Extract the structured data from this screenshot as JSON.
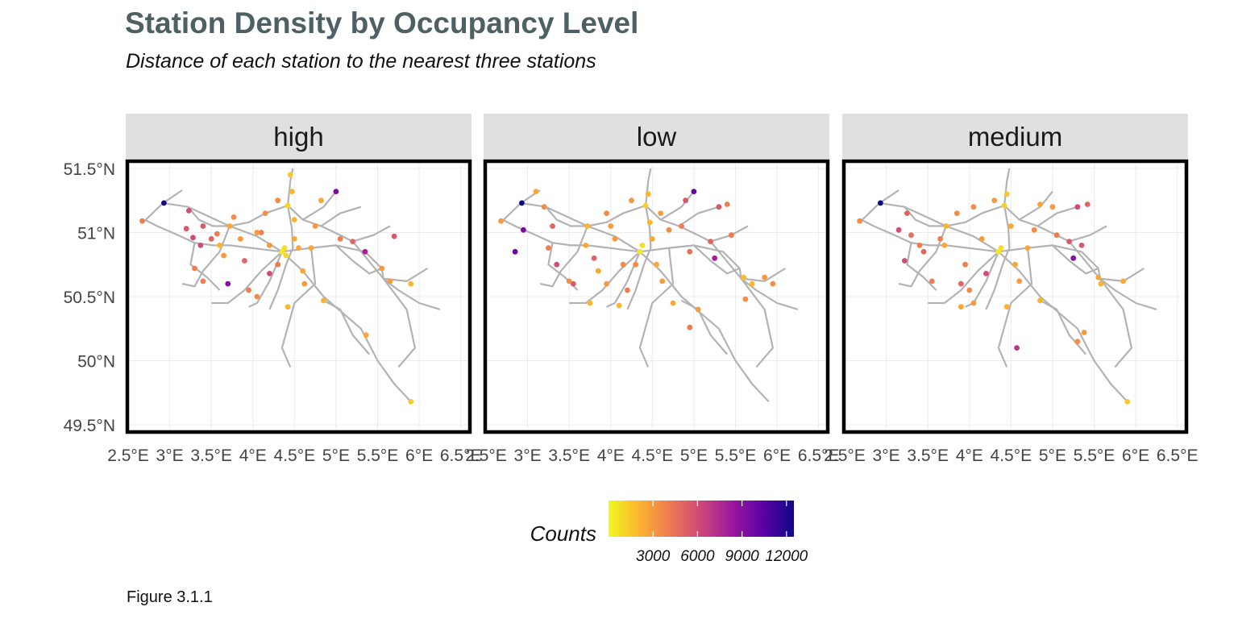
{
  "title": "Station Density by Occupancy Level",
  "subtitle": "Distance of each station to the nearest three stations",
  "caption": "Figure 3.1.1",
  "chart_data": {
    "type": "scatter",
    "geometry": "map of railway lines (grey) with station points",
    "facet_labels": [
      "high",
      "low",
      "medium"
    ],
    "x_ticks": [
      "2.5°E",
      "3°E",
      "3.5°E",
      "4°E",
      "4.5°E",
      "5°E",
      "5.5°E",
      "6°E",
      "6.5°E"
    ],
    "x_tick_values": [
      2.5,
      3,
      3.5,
      4,
      4.5,
      5,
      5.5,
      6,
      6.5
    ],
    "y_ticks": [
      "51.5°N",
      "51°N",
      "50.5°N",
      "50°N",
      "49.5°N"
    ],
    "y_tick_values": [
      51.5,
      51,
      50.5,
      50,
      49.5
    ],
    "xlim": [
      2.5,
      6.6
    ],
    "ylim": [
      49.45,
      51.55
    ],
    "grid": true,
    "legend": {
      "title": "Counts",
      "position": "bottom",
      "ticks": [
        "3000",
        "6000",
        "9000",
        "12000"
      ],
      "tick_values": [
        3000,
        6000,
        9000,
        12000
      ],
      "range": [
        0,
        12500
      ],
      "palette": "plasma (reversed)",
      "colors": [
        "#f0f921",
        "#fdb32f",
        "#ed7953",
        "#cc4778",
        "#9c179e",
        "#5c01a6",
        "#0d0887"
      ]
    },
    "line_color": "#b3b3b3",
    "lines": [
      [
        [
          2.68,
          51.08
        ],
        [
          2.92,
          51.23
        ],
        [
          3.15,
          51.33
        ]
      ],
      [
        [
          2.92,
          51.23
        ],
        [
          3.22,
          51.2
        ],
        [
          3.72,
          51.05
        ],
        [
          4.05,
          50.97
        ],
        [
          4.35,
          50.85
        ]
      ],
      [
        [
          3.22,
          51.2
        ],
        [
          3.35,
          51.1
        ],
        [
          3.52,
          51.05
        ],
        [
          3.72,
          51.05
        ]
      ],
      [
        [
          2.7,
          51.1
        ],
        [
          2.85,
          51.05
        ],
        [
          3.1,
          50.98
        ],
        [
          3.3,
          50.92
        ],
        [
          3.52,
          50.9
        ],
        [
          3.72,
          50.9
        ],
        [
          4.35,
          50.85
        ]
      ],
      [
        [
          3.72,
          51.05
        ],
        [
          3.95,
          51.08
        ],
        [
          4.15,
          51.15
        ],
        [
          4.42,
          51.21
        ]
      ],
      [
        [
          4.42,
          51.21
        ],
        [
          4.45,
          51.4
        ],
        [
          4.48,
          51.5
        ]
      ],
      [
        [
          4.42,
          51.21
        ],
        [
          4.6,
          51.1
        ],
        [
          4.82,
          51.05
        ],
        [
          5.05,
          50.98
        ],
        [
          5.2,
          50.93
        ],
        [
          5.57,
          50.64
        ],
        [
          5.85,
          50.62
        ],
        [
          6.1,
          50.72
        ]
      ],
      [
        [
          4.42,
          51.21
        ],
        [
          4.47,
          51.03
        ],
        [
          4.48,
          50.88
        ],
        [
          4.4,
          50.75
        ],
        [
          4.3,
          50.55
        ],
        [
          4.2,
          50.4
        ]
      ],
      [
        [
          4.35,
          50.85
        ],
        [
          4.7,
          50.88
        ],
        [
          5.0,
          50.9
        ],
        [
          5.35,
          50.85
        ],
        [
          5.55,
          50.72
        ],
        [
          5.57,
          50.64
        ]
      ],
      [
        [
          4.35,
          50.85
        ],
        [
          4.6,
          50.7
        ],
        [
          4.85,
          50.5
        ],
        [
          5.3,
          50.25
        ],
        [
          5.5,
          50.0
        ],
        [
          5.7,
          49.82
        ],
        [
          5.9,
          49.68
        ]
      ],
      [
        [
          4.35,
          50.85
        ],
        [
          4.1,
          50.7
        ],
        [
          3.9,
          50.55
        ],
        [
          3.7,
          50.45
        ],
        [
          3.5,
          50.45
        ]
      ],
      [
        [
          3.72,
          51.05
        ],
        [
          3.6,
          50.85
        ],
        [
          3.4,
          50.7
        ],
        [
          3.3,
          50.58
        ],
        [
          3.15,
          50.6
        ]
      ],
      [
        [
          4.35,
          50.85
        ],
        [
          4.2,
          50.62
        ],
        [
          4.05,
          50.45
        ],
        [
          3.95,
          50.42
        ]
      ],
      [
        [
          4.85,
          50.47
        ],
        [
          5.05,
          50.4
        ],
        [
          5.2,
          50.2
        ],
        [
          5.4,
          50.05
        ]
      ],
      [
        [
          5.57,
          50.64
        ],
        [
          5.75,
          50.55
        ],
        [
          6.0,
          50.45
        ],
        [
          6.25,
          50.4
        ]
      ],
      [
        [
          5.57,
          50.64
        ],
        [
          5.85,
          50.4
        ],
        [
          5.95,
          50.1
        ],
        [
          5.75,
          49.95
        ]
      ],
      [
        [
          4.82,
          51.05
        ],
        [
          5.05,
          51.15
        ],
        [
          5.3,
          51.2
        ]
      ],
      [
        [
          4.6,
          51.1
        ],
        [
          4.85,
          51.2
        ],
        [
          5.0,
          51.32
        ]
      ],
      [
        [
          3.3,
          50.92
        ],
        [
          3.25,
          50.75
        ],
        [
          3.45,
          50.65
        ],
        [
          3.6,
          50.55
        ]
      ],
      [
        [
          4.7,
          50.88
        ],
        [
          4.75,
          50.6
        ],
        [
          4.5,
          50.45
        ],
        [
          4.35,
          50.1
        ],
        [
          4.45,
          49.95
        ]
      ],
      [
        [
          5.2,
          50.93
        ],
        [
          5.45,
          50.98
        ],
        [
          5.65,
          51.05
        ]
      ],
      [
        [
          5.0,
          50.9
        ],
        [
          5.2,
          50.78
        ],
        [
          5.4,
          50.68
        ],
        [
          5.55,
          50.72
        ]
      ]
    ],
    "panels": [
      {
        "name": "high",
        "points": [
          [
            2.67,
            51.09,
            4000
          ],
          [
            2.93,
            51.23,
            12300
          ],
          [
            3.2,
            51.03,
            5500
          ],
          [
            3.23,
            51.17,
            6000
          ],
          [
            3.28,
            50.96,
            6000
          ],
          [
            3.37,
            50.9,
            6000
          ],
          [
            3.3,
            50.72,
            4000
          ],
          [
            3.4,
            50.62,
            4000
          ],
          [
            3.57,
            50.99,
            4000
          ],
          [
            3.72,
            51.05,
            2500
          ],
          [
            3.6,
            50.9,
            2000
          ],
          [
            3.65,
            50.82,
            3000
          ],
          [
            3.77,
            51.12,
            3500
          ],
          [
            3.85,
            50.95,
            3000
          ],
          [
            3.9,
            50.78,
            5000
          ],
          [
            3.95,
            50.55,
            4000
          ],
          [
            4.05,
            50.5,
            3500
          ],
          [
            4.05,
            51.0,
            3000
          ],
          [
            4.15,
            51.15,
            3500
          ],
          [
            4.2,
            50.9,
            3000
          ],
          [
            4.2,
            50.68,
            6000
          ],
          [
            4.3,
            51.25,
            3500
          ],
          [
            4.3,
            50.75,
            4000
          ],
          [
            4.35,
            50.85,
            500
          ],
          [
            4.38,
            50.88,
            800
          ],
          [
            4.4,
            50.82,
            1000
          ],
          [
            4.42,
            51.21,
            1000
          ],
          [
            4.45,
            51.45,
            1500
          ],
          [
            4.47,
            51.32,
            2000
          ],
          [
            4.5,
            51.1,
            2000
          ],
          [
            4.5,
            50.95,
            2500
          ],
          [
            4.55,
            50.88,
            2500
          ],
          [
            4.6,
            50.7,
            2500
          ],
          [
            4.62,
            50.6,
            3000
          ],
          [
            4.42,
            50.42,
            2000
          ],
          [
            4.7,
            50.88,
            2500
          ],
          [
            4.75,
            51.05,
            3000
          ],
          [
            4.82,
            51.25,
            2500
          ],
          [
            4.85,
            50.47,
            2000
          ],
          [
            5.0,
            51.32,
            9500
          ],
          [
            5.05,
            50.95,
            4000
          ],
          [
            5.2,
            50.93,
            5000
          ],
          [
            5.35,
            50.85,
            8000
          ],
          [
            5.55,
            50.72,
            3000
          ],
          [
            5.65,
            50.62,
            3000
          ],
          [
            5.7,
            50.97,
            5500
          ],
          [
            5.9,
            50.6,
            2000
          ],
          [
            5.36,
            50.2,
            2500
          ],
          [
            5.9,
            49.68,
            1500
          ],
          [
            3.7,
            50.6,
            9000
          ],
          [
            4.1,
            51.0,
            4000
          ],
          [
            3.4,
            51.05,
            5500
          ],
          [
            3.5,
            50.95,
            5000
          ]
        ]
      },
      {
        "name": "low",
        "points": [
          [
            2.68,
            51.09,
            3000
          ],
          [
            2.93,
            51.23,
            12500
          ],
          [
            3.1,
            51.32,
            2500
          ],
          [
            2.95,
            51.02,
            9500
          ],
          [
            2.85,
            50.85,
            10000
          ],
          [
            3.2,
            51.2,
            3500
          ],
          [
            3.3,
            51.05,
            5000
          ],
          [
            3.25,
            50.88,
            4000
          ],
          [
            3.35,
            50.75,
            6000
          ],
          [
            3.55,
            50.6,
            5500
          ],
          [
            3.72,
            51.05,
            2000
          ],
          [
            3.7,
            50.9,
            2500
          ],
          [
            3.75,
            50.45,
            2000
          ],
          [
            3.85,
            50.7,
            2500
          ],
          [
            3.95,
            50.6,
            3000
          ],
          [
            3.95,
            51.15,
            3500
          ],
          [
            4.05,
            50.95,
            3000
          ],
          [
            4.15,
            50.75,
            3500
          ],
          [
            4.2,
            50.55,
            4000
          ],
          [
            4.25,
            51.25,
            3000
          ],
          [
            4.35,
            50.85,
            500
          ],
          [
            4.38,
            50.9,
            800
          ],
          [
            4.42,
            51.21,
            1200
          ],
          [
            4.45,
            51.3,
            2000
          ],
          [
            4.47,
            51.08,
            2000
          ],
          [
            4.5,
            50.95,
            2500
          ],
          [
            4.55,
            50.75,
            2500
          ],
          [
            4.62,
            50.62,
            3000
          ],
          [
            4.6,
            51.15,
            3000
          ],
          [
            4.7,
            51.02,
            3500
          ],
          [
            4.75,
            50.45,
            2500
          ],
          [
            4.85,
            51.05,
            4000
          ],
          [
            4.9,
            51.25,
            5500
          ],
          [
            5.0,
            51.32,
            10000
          ],
          [
            4.95,
            50.85,
            4500
          ],
          [
            5.05,
            50.4,
            3000
          ],
          [
            4.95,
            50.26,
            4000
          ],
          [
            5.2,
            50.93,
            5000
          ],
          [
            5.25,
            50.8,
            8000
          ],
          [
            5.3,
            51.2,
            5500
          ],
          [
            5.4,
            51.22,
            4000
          ],
          [
            5.45,
            50.98,
            4000
          ],
          [
            5.6,
            50.65,
            1800
          ],
          [
            5.7,
            50.6,
            2000
          ],
          [
            5.85,
            50.65,
            3000
          ],
          [
            5.95,
            50.6,
            3500
          ],
          [
            5.62,
            50.48,
            3500
          ],
          [
            4.1,
            50.43,
            2000
          ],
          [
            3.5,
            50.62,
            3500
          ],
          [
            4.3,
            50.75,
            3500
          ],
          [
            3.8,
            50.8,
            5000
          ],
          [
            4.0,
            51.05,
            3000
          ]
        ]
      },
      {
        "name": "medium",
        "points": [
          [
            2.68,
            51.09,
            3500
          ],
          [
            2.93,
            51.23,
            12500
          ],
          [
            3.25,
            51.15,
            5000
          ],
          [
            3.15,
            51.02,
            6000
          ],
          [
            3.3,
            50.98,
            4500
          ],
          [
            3.4,
            50.9,
            4000
          ],
          [
            3.22,
            50.78,
            6000
          ],
          [
            3.45,
            50.85,
            5000
          ],
          [
            3.55,
            50.62,
            4000
          ],
          [
            3.72,
            51.05,
            2000
          ],
          [
            3.7,
            50.9,
            2500
          ],
          [
            3.85,
            51.15,
            3500
          ],
          [
            3.95,
            50.75,
            4000
          ],
          [
            3.9,
            50.6,
            5000
          ],
          [
            3.9,
            50.42,
            2500
          ],
          [
            4.05,
            50.45,
            3000
          ],
          [
            4.05,
            51.2,
            3500
          ],
          [
            4.15,
            50.95,
            3000
          ],
          [
            4.2,
            50.68,
            6000
          ],
          [
            4.3,
            51.25,
            3000
          ],
          [
            4.35,
            50.85,
            500
          ],
          [
            4.38,
            50.88,
            900
          ],
          [
            4.42,
            51.21,
            1200
          ],
          [
            4.45,
            51.3,
            1500
          ],
          [
            4.5,
            51.05,
            2500
          ],
          [
            4.55,
            50.75,
            2500
          ],
          [
            4.6,
            50.62,
            3000
          ],
          [
            4.45,
            50.42,
            2000
          ],
          [
            4.7,
            50.88,
            2500
          ],
          [
            4.78,
            51.02,
            3500
          ],
          [
            4.85,
            51.22,
            2500
          ],
          [
            4.85,
            50.47,
            2000
          ],
          [
            5.0,
            51.2,
            3000
          ],
          [
            5.05,
            50.98,
            4000
          ],
          [
            5.2,
            50.93,
            5500
          ],
          [
            5.25,
            50.8,
            9000
          ],
          [
            5.3,
            51.2,
            6000
          ],
          [
            5.42,
            51.22,
            5000
          ],
          [
            5.35,
            50.9,
            5500
          ],
          [
            5.55,
            50.65,
            2500
          ],
          [
            5.58,
            50.6,
            2000
          ],
          [
            5.38,
            50.22,
            3000
          ],
          [
            5.3,
            50.15,
            3500
          ],
          [
            4.57,
            50.1,
            7000
          ],
          [
            5.9,
            49.68,
            1500
          ],
          [
            5.85,
            50.62,
            2500
          ],
          [
            3.65,
            50.95,
            4000
          ],
          [
            4.0,
            50.55,
            3500
          ]
        ]
      }
    ]
  }
}
